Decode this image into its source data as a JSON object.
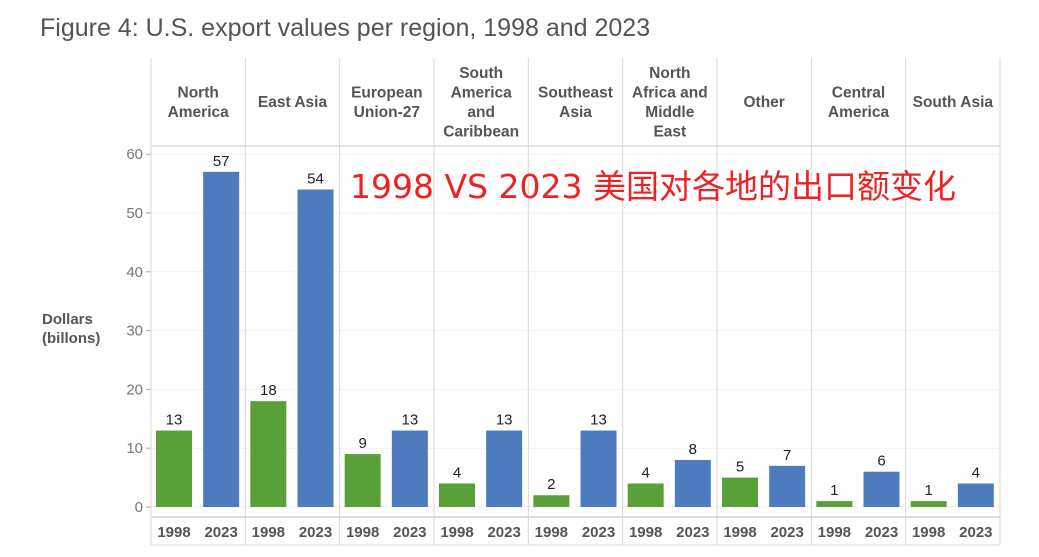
{
  "title": "Figure 4: U.S. export values per region, 1998 and 2023",
  "chart_data": {
    "type": "bar",
    "title": "Figure 4: U.S. export values per region, 1998 and 2023",
    "ylabel": [
      "Dollars",
      "(billons)"
    ],
    "xlabel": "",
    "ylim": [
      0,
      62
    ],
    "yticks": [
      0,
      10,
      20,
      30,
      40,
      50,
      60
    ],
    "grid": true,
    "legend": "none",
    "annotation": "1998 VS 2023 美国对各地的出口额变化",
    "categories": [
      {
        "name": [
          "North",
          "America"
        ],
        "values": [
          13,
          57
        ]
      },
      {
        "name": [
          "East Asia"
        ],
        "values": [
          18,
          54
        ]
      },
      {
        "name": [
          "European",
          "Union-27"
        ],
        "values": [
          9,
          13
        ]
      },
      {
        "name": [
          "South",
          "America",
          "and",
          "Caribbean"
        ],
        "values": [
          4,
          13
        ]
      },
      {
        "name": [
          "Southeast",
          "Asia"
        ],
        "values": [
          2,
          13
        ]
      },
      {
        "name": [
          "North",
          "Africa and",
          "Middle",
          "East"
        ],
        "values": [
          4,
          8
        ]
      },
      {
        "name": [
          "Other"
        ],
        "values": [
          5,
          7
        ]
      },
      {
        "name": [
          "Central",
          "America"
        ],
        "values": [
          1,
          6
        ]
      },
      {
        "name": [
          "South Asia"
        ],
        "values": [
          1,
          4
        ]
      }
    ],
    "series": [
      {
        "name": "1998",
        "color": "#5aa039"
      },
      {
        "name": "2023",
        "color": "#4e7bbd"
      }
    ]
  }
}
